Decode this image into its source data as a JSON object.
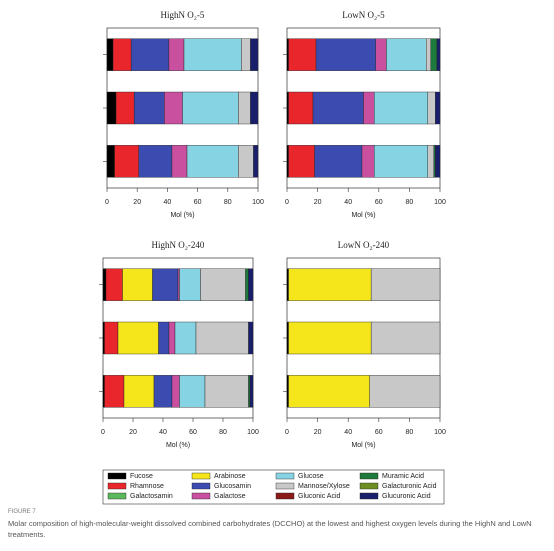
{
  "chart_data": [
    {
      "type": "bar",
      "horizontal": true,
      "title": "HighN O₂-5",
      "xlabel": "Mol (%)",
      "categories": [
        null,
        null,
        null
      ],
      "xlim": [
        0,
        100
      ],
      "xticks": [
        0,
        20,
        40,
        60,
        80,
        100
      ],
      "series": [
        {
          "name": "Fucose",
          "color": "#000000",
          "values": [
            4,
            6,
            5
          ]
        },
        {
          "name": "Rhamnose",
          "color": "#e8262b",
          "values": [
            12,
            12,
            16
          ]
        },
        {
          "name": "Galactosamin",
          "color": "#5cb85c",
          "values": [
            0,
            0,
            0
          ]
        },
        {
          "name": "Arabinose",
          "color": "#f5e61c",
          "values": [
            0,
            0,
            0
          ]
        },
        {
          "name": "Glucosamin",
          "color": "#3b4bb0",
          "values": [
            25,
            20,
            22
          ]
        },
        {
          "name": "Galactose",
          "color": "#c94f9f",
          "values": [
            10,
            12,
            10
          ]
        },
        {
          "name": "Glucose",
          "color": "#86d3e3",
          "values": [
            38,
            37,
            34
          ]
        },
        {
          "name": "Mannose/Xylose",
          "color": "#c8c8c8",
          "values": [
            6,
            8,
            10
          ]
        },
        {
          "name": "Gluconic Acid",
          "color": "#8b1a1a",
          "values": [
            0,
            0,
            0
          ]
        },
        {
          "name": "Muramic Acid",
          "color": "#1e7a3c",
          "values": [
            0,
            0,
            0
          ]
        },
        {
          "name": "Galacturonic Acid",
          "color": "#6b8e23",
          "values": [
            0,
            0,
            0
          ]
        },
        {
          "name": "Glucuronic Acid",
          "color": "#1a1f6b",
          "values": [
            5,
            5,
            3
          ]
        }
      ]
    },
    {
      "type": "bar",
      "horizontal": true,
      "title": "LowN O₂-5",
      "xlabel": "Mol (%)",
      "categories": [
        null,
        null,
        null
      ],
      "xlim": [
        0,
        100
      ],
      "xticks": [
        0,
        20,
        40,
        60,
        80,
        100
      ],
      "series": [
        {
          "name": "Fucose",
          "values": [
            1,
            1,
            1
          ]
        },
        {
          "name": "Rhamnose",
          "values": [
            18,
            16,
            17
          ]
        },
        {
          "name": "Galactosamin",
          "values": [
            0,
            0,
            0
          ]
        },
        {
          "name": "Arabinose",
          "values": [
            0,
            0,
            0
          ]
        },
        {
          "name": "Glucosamin",
          "values": [
            39,
            33,
            31
          ]
        },
        {
          "name": "Galactose",
          "values": [
            7,
            7,
            8
          ]
        },
        {
          "name": "Glucose",
          "values": [
            26,
            35,
            35
          ]
        },
        {
          "name": "Mannose/Xylose",
          "values": [
            3,
            5,
            4
          ]
        },
        {
          "name": "Gluconic Acid",
          "values": [
            0,
            0,
            0
          ]
        },
        {
          "name": "Muramic Acid",
          "values": [
            4,
            0,
            1
          ]
        },
        {
          "name": "Galacturonic Acid",
          "values": [
            0,
            0,
            0
          ]
        },
        {
          "name": "Glucuronic Acid",
          "values": [
            2,
            3,
            3
          ]
        }
      ]
    },
    {
      "type": "bar",
      "horizontal": true,
      "title": "HighN O₂-240",
      "xlabel": "Mol (%)",
      "categories": [
        null,
        null,
        null
      ],
      "xlim": [
        0,
        100
      ],
      "xticks": [
        0,
        20,
        40,
        60,
        80,
        100
      ],
      "series": [
        {
          "name": "Fucose",
          "values": [
            2,
            1,
            1
          ]
        },
        {
          "name": "Rhamnose",
          "values": [
            11,
            9,
            13
          ]
        },
        {
          "name": "Galactosamin",
          "values": [
            0,
            0,
            0
          ]
        },
        {
          "name": "Arabinose",
          "values": [
            20,
            27,
            20
          ]
        },
        {
          "name": "Glucosamin",
          "values": [
            17,
            7,
            12
          ]
        },
        {
          "name": "Galactose",
          "values": [
            1,
            4,
            5
          ]
        },
        {
          "name": "Glucose",
          "values": [
            14,
            14,
            17
          ]
        },
        {
          "name": "Mannose/Xylose",
          "values": [
            30,
            35,
            29
          ]
        },
        {
          "name": "Gluconic Acid",
          "values": [
            0,
            0,
            0
          ]
        },
        {
          "name": "Muramic Acid",
          "values": [
            2,
            0,
            1
          ]
        },
        {
          "name": "Galacturonic Acid",
          "values": [
            0,
            0,
            0
          ]
        },
        {
          "name": "Glucuronic Acid",
          "values": [
            3,
            3,
            2
          ]
        }
      ]
    },
    {
      "type": "bar",
      "horizontal": true,
      "title": "LowN O₂-240",
      "xlabel": "Mol (%)",
      "categories": [
        null,
        null,
        null
      ],
      "xlim": [
        0,
        100
      ],
      "xticks": [
        0,
        20,
        40,
        60,
        80,
        100
      ],
      "series": [
        {
          "name": "Fucose",
          "values": [
            1,
            1,
            1
          ]
        },
        {
          "name": "Rhamnose",
          "values": [
            0,
            0,
            0
          ]
        },
        {
          "name": "Galactosamin",
          "values": [
            0,
            0,
            0
          ]
        },
        {
          "name": "Arabinose",
          "values": [
            54,
            54,
            53
          ]
        },
        {
          "name": "Glucosamin",
          "values": [
            0,
            0,
            0
          ]
        },
        {
          "name": "Galactose",
          "values": [
            0,
            0,
            0
          ]
        },
        {
          "name": "Glucose",
          "values": [
            0,
            0,
            0
          ]
        },
        {
          "name": "Mannose/Xylose",
          "values": [
            45,
            45,
            46
          ]
        },
        {
          "name": "Gluconic Acid",
          "values": [
            0,
            0,
            0
          ]
        },
        {
          "name": "Muramic Acid",
          "values": [
            0,
            0,
            0
          ]
        },
        {
          "name": "Galacturonic Acid",
          "values": [
            0,
            0,
            0
          ]
        },
        {
          "name": "Glucuronic Acid",
          "values": [
            0,
            0,
            0
          ]
        }
      ]
    }
  ],
  "figure": {
    "label": "FIGURE 7",
    "caption": "Molar composition of high-molecular-weight dissolved combined carbohydrates (DCCHO) at the lowest and highest oxygen levels during the HighN and LowN treatments."
  }
}
